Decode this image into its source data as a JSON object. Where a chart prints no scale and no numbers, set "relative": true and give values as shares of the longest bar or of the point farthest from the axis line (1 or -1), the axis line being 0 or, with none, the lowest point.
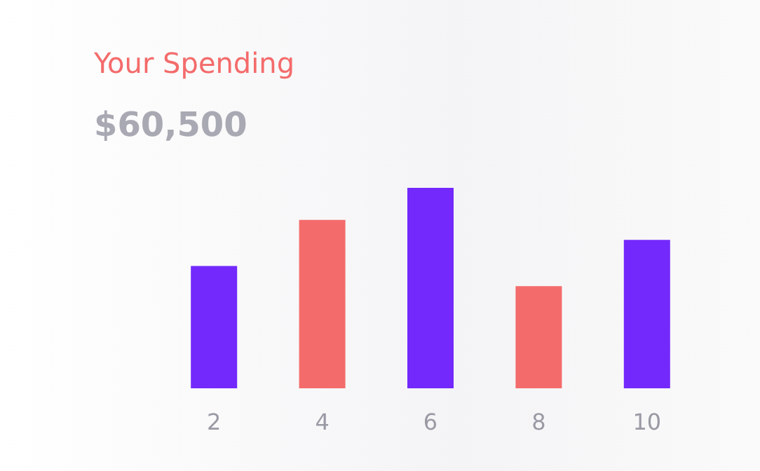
{
  "chart_data": {
    "type": "bar",
    "title": "Your Spending",
    "subtitle": "$60,500",
    "relative": true,
    "categories": [
      "2",
      "4",
      "6",
      "8",
      "10"
    ],
    "values": [
      0.61,
      0.84,
      1,
      0.51,
      0.74
    ],
    "colors": [
      "#7329fb",
      "#f46b6b",
      "#7329fb",
      "#f46b6b",
      "#7329fb"
    ],
    "grid": false
  }
}
